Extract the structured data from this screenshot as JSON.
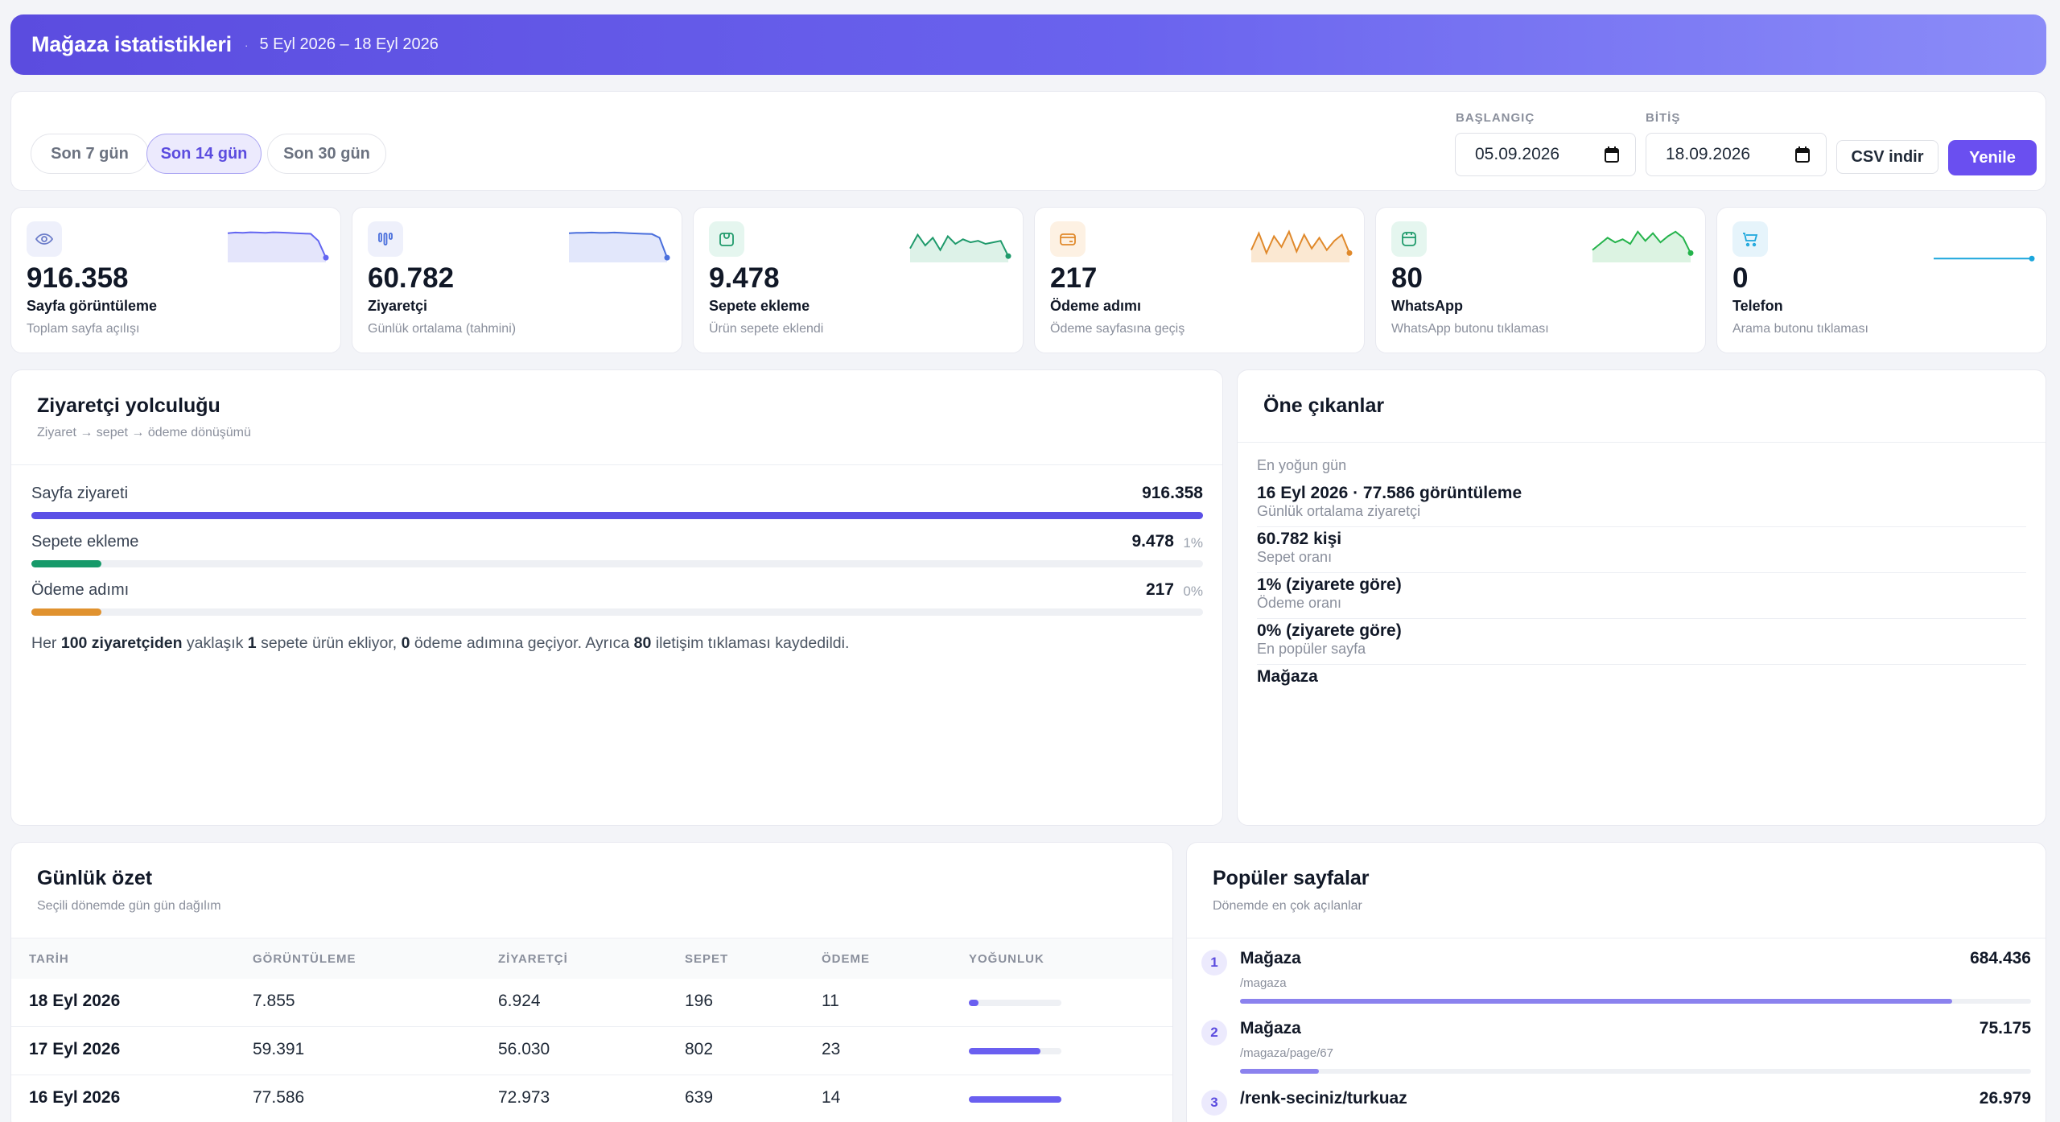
{
  "header": {
    "title": "Mağaza istatistikleri",
    "separator": "·",
    "range": "5 Eyl 2026 – 18 Eyl 2026"
  },
  "filters": {
    "presets": [
      {
        "label": "Son 7 gün",
        "active": false
      },
      {
        "label": "Son 14 gün",
        "active": true
      },
      {
        "label": "Son 30 gün",
        "active": false
      }
    ],
    "start_label": "BAŞLANGIÇ",
    "start_value": "05.09.2026",
    "end_label": "BİTİŞ",
    "end_value": "18.09.2026",
    "csv_label": "CSV indir",
    "refresh_label": "Yenile"
  },
  "kpis": [
    {
      "icon": "eye-icon",
      "value": "916.358",
      "label": "Sayfa görüntüleme",
      "sub": "Toplam sayfa açılışı",
      "color": "#6366f1",
      "icon_bg": "#eef0fb",
      "fill": "#e4e5fb",
      "spark": [
        0.85,
        0.87,
        0.86,
        0.88,
        0.87,
        0.86,
        0.88,
        0.87,
        0.86,
        0.85,
        0.84,
        0.83,
        0.6,
        0.05
      ]
    },
    {
      "icon": "visitors-icon",
      "value": "60.782",
      "label": "Ziyaretçi",
      "sub": "Günlük ortalama (tahmini)",
      "color": "#4a6fdc",
      "icon_bg": "#eef0fb",
      "fill": "#e2e7fb",
      "spark": [
        0.85,
        0.86,
        0.86,
        0.87,
        0.86,
        0.86,
        0.87,
        0.86,
        0.85,
        0.84,
        0.83,
        0.82,
        0.7,
        0.05
      ]
    },
    {
      "icon": "cart-icon",
      "value": "9.478",
      "label": "Sepete ekleme",
      "sub": "Ürün sepete eklendi",
      "color": "#1f9a6b",
      "icon_bg": "#e5f6ef",
      "fill": "#ddf2e8",
      "spark": [
        0.35,
        0.8,
        0.45,
        0.7,
        0.3,
        0.75,
        0.5,
        0.65,
        0.55,
        0.6,
        0.5,
        0.55,
        0.6,
        0.1
      ]
    },
    {
      "icon": "wallet-icon",
      "value": "217",
      "label": "Ödeme adımı",
      "sub": "Ödeme sayfasına geçiş",
      "color": "#e0892b",
      "icon_bg": "#fdf1e3",
      "fill": "#fbe8d2",
      "spark": [
        0.3,
        0.85,
        0.2,
        0.75,
        0.4,
        0.9,
        0.25,
        0.8,
        0.35,
        0.7,
        0.3,
        0.6,
        0.8,
        0.2
      ]
    },
    {
      "icon": "whatsapp-icon",
      "value": "80",
      "label": "WhatsApp",
      "sub": "WhatsApp butonu tıklaması",
      "color": "#24b34b",
      "icon_bg": "#e5f6ef",
      "fill": "#dcf3e2",
      "spark": [
        0.3,
        0.5,
        0.7,
        0.55,
        0.65,
        0.5,
        0.9,
        0.6,
        0.85,
        0.55,
        0.75,
        0.9,
        0.7,
        0.2
      ]
    },
    {
      "icon": "phone-icon",
      "value": "0",
      "label": "Telefon",
      "sub": "Arama butonu tıklaması",
      "color": "#1ba6dc",
      "icon_bg": "#e6f4fb",
      "fill": "none",
      "spark": [
        0.02,
        0.02,
        0.02,
        0.02,
        0.02,
        0.02,
        0.02,
        0.02,
        0.02,
        0.02,
        0.02,
        0.02,
        0.02,
        0.02
      ]
    }
  ],
  "funnel": {
    "title": "Ziyaretçi yolculuğu",
    "subtitle": "Ziyaret → sepet → ödeme dönüşümü",
    "rows": [
      {
        "label": "Sayfa ziyareti",
        "value": "916.358",
        "pct": "",
        "fill_ratio": 1.0,
        "color": "#5b50e6"
      },
      {
        "label": "Sepete ekleme",
        "value": "9.478",
        "pct": "1%",
        "fill_ratio": 0.06,
        "color": "#179a6a"
      },
      {
        "label": "Ödeme adımı",
        "value": "217",
        "pct": "0%",
        "fill_ratio": 0.06,
        "color": "#e0922f"
      }
    ],
    "note": {
      "p1": "Her ",
      "b1": "100 ziyaretçiden",
      "p2": " yaklaşık ",
      "b2": "1",
      "p3": " sepete ürün ekliyor, ",
      "b3": "0",
      "p4": " ödeme adımına geçiyor. Ayrıca ",
      "b4": "80",
      "p5": " iletişim tıklaması kaydedildi."
    }
  },
  "highlights": {
    "title": "Öne çıkanlar",
    "items": [
      {
        "key": "En yoğun gün",
        "value": "16 Eyl 2026 · 77.586 görüntüleme"
      },
      {
        "key": "Günlük ortalama ziyaretçi",
        "value": "60.782 kişi"
      },
      {
        "key": "Sepet oranı",
        "value": "1% (ziyarete göre)"
      },
      {
        "key": "Ödeme oranı",
        "value": "0% (ziyarete göre)"
      },
      {
        "key": "En popüler sayfa",
        "value": "Mağaza"
      }
    ]
  },
  "daily": {
    "title": "Günlük özet",
    "subtitle": "Seçili dönemde gün gün dağılım",
    "columns": [
      "TARİH",
      "GÖRÜNTÜLEME",
      "ZİYARETÇİ",
      "SEPET",
      "ÖDEME",
      "YOĞUNLUK"
    ],
    "rows": [
      {
        "date": "18 Eyl 2026",
        "views": "7.855",
        "visitors": "6.924",
        "cart": "196",
        "checkout": "11",
        "intensity": 0.1
      },
      {
        "date": "17 Eyl 2026",
        "views": "59.391",
        "visitors": "56.030",
        "cart": "802",
        "checkout": "23",
        "intensity": 0.77
      },
      {
        "date": "16 Eyl 2026",
        "views": "77.586",
        "visitors": "72.973",
        "cart": "639",
        "checkout": "14",
        "intensity": 1.0
      }
    ]
  },
  "popular": {
    "title": "Popüler sayfalar",
    "subtitle": "Dönemde en çok açılanlar",
    "items": [
      {
        "rank": "1",
        "title": "Mağaza",
        "path": "/magaza",
        "value": "684.436",
        "ratio": 0.9
      },
      {
        "rank": "2",
        "title": "Mağaza",
        "path": "/magaza/page/67",
        "value": "75.175",
        "ratio": 0.1
      },
      {
        "rank": "3",
        "title": "/renk-seciniz/turkuaz",
        "path": "",
        "value": "26.979",
        "ratio": 0.04
      }
    ]
  }
}
